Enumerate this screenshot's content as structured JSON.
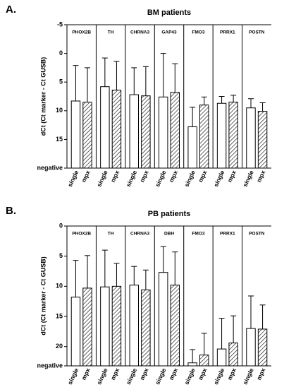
{
  "chart_data": [
    {
      "type": "bar",
      "panel": "A.",
      "title": "BM patients",
      "ylabel": "dCt (Ct marker - Ct GUSB)",
      "groups": [
        "PHOX2B",
        "TH",
        "CHRNA3",
        "GAP43",
        "FMO3",
        "PRRX1",
        "POSTN"
      ],
      "series": [
        {
          "name": "single",
          "color": "#ffffff",
          "hatch": false,
          "values": [
            8.3,
            5.8,
            7.2,
            7.6,
            12.8,
            8.7,
            9.5
          ],
          "errors": [
            6.2,
            5.0,
            4.7,
            7.6,
            3.4,
            1.2,
            1.6
          ]
        },
        {
          "name": "mpx",
          "color": "#ffffff",
          "hatch": true,
          "values": [
            8.5,
            6.4,
            7.4,
            6.8,
            9.0,
            8.5,
            10.1
          ],
          "errors": [
            6.0,
            5.0,
            5.1,
            5.0,
            1.4,
            1.2,
            1.5
          ]
        }
      ],
      "ylim": [
        -5,
        20
      ],
      "yticks": [
        -5,
        0,
        5,
        10,
        15,
        {
          "value": 20,
          "label": "negative"
        }
      ]
    },
    {
      "type": "bar",
      "panel": "B.",
      "title": "PB patients",
      "ylabel": "dCt (Ct marker - Ct GUSB)",
      "groups": [
        "PHOX2B",
        "TH",
        "CHRNA3",
        "DBH",
        "FMO3",
        "PRRX1",
        "POSTN"
      ],
      "series": [
        {
          "name": "single",
          "color": "#ffffff",
          "hatch": false,
          "values": [
            11.8,
            10.1,
            9.8,
            7.7,
            22.7,
            20.4,
            17.0
          ],
          "errors": [
            6.1,
            6.1,
            3.1,
            4.3,
            2.2,
            5.1,
            5.4
          ]
        },
        {
          "name": "mpx",
          "color": "#ffffff",
          "hatch": true,
          "values": [
            10.3,
            10.0,
            10.6,
            9.8,
            21.4,
            19.4,
            17.1
          ],
          "errors": [
            5.4,
            3.8,
            3.3,
            5.5,
            3.6,
            4.5,
            4.0
          ]
        }
      ],
      "ylim": [
        0,
        23.2
      ],
      "yticks": [
        0,
        5,
        10,
        15,
        20,
        {
          "value": 23.2,
          "label": "negative"
        }
      ]
    }
  ]
}
